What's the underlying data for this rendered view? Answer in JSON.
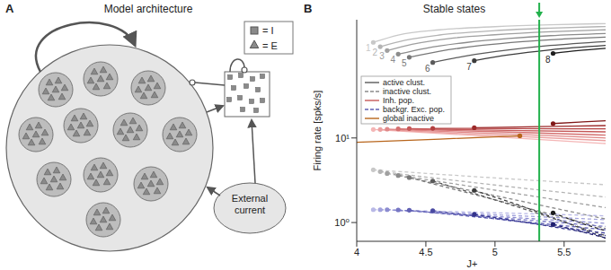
{
  "panel_a": {
    "label": "A",
    "title": "Model architecture",
    "legend": [
      {
        "shape": "square",
        "text": "= I"
      },
      {
        "shape": "triangle",
        "text": "= E"
      }
    ],
    "external": {
      "label_lines": [
        "External",
        "current"
      ]
    },
    "clusters": 11
  },
  "chart_data": {
    "type": "line",
    "panel_label": "B",
    "title": "Stable states",
    "x_label": "J+",
    "y_label": "Firing rate [spks/s]",
    "log": "y",
    "xlim": [
      4,
      5.8
    ],
    "xticks": [
      4,
      4.5,
      5,
      5.5
    ],
    "ylim": [
      0.6,
      250
    ],
    "yticks": [
      {
        "value": 1,
        "label": "10⁰"
      },
      {
        "value": 10,
        "label": "10¹"
      }
    ],
    "legend": "left",
    "reference_line": {
      "x": 5.32,
      "color": "#22b14c"
    },
    "series": [
      {
        "name": "active clust.",
        "color": "#5a5a5a",
        "line_style": "solid",
        "marker": "start",
        "lines": [
          {
            "label": "1",
            "color": "#c8c8c8",
            "x": [
              4.12,
              4.3,
              4.6,
              5.0,
              5.4,
              5.8
            ],
            "values": [
              135,
              165,
              190,
              207,
              218,
              225
            ]
          },
          {
            "label": "2",
            "color": "#b4b4b4",
            "x": [
              4.17,
              4.35,
              4.6,
              5.0,
              5.4,
              5.8
            ],
            "values": [
              120,
              143,
              165,
              186,
              199,
              208
            ]
          },
          {
            "label": "3",
            "color": "#a0a0a0",
            "x": [
              4.22,
              4.4,
              4.7,
              5.0,
              5.4,
              5.8
            ],
            "values": [
              108,
              128,
              152,
              166,
              180,
              190
            ]
          },
          {
            "label": "4",
            "color": "#8c8c8c",
            "x": [
              4.3,
              4.5,
              4.8,
              5.1,
              5.4,
              5.8
            ],
            "values": [
              98,
              115,
              135,
              150,
              162,
              172
            ]
          },
          {
            "label": "5",
            "color": "#787878",
            "x": [
              4.38,
              4.6,
              4.9,
              5.2,
              5.5,
              5.8
            ],
            "values": [
              90,
              106,
              124,
              138,
              148,
              156
            ]
          },
          {
            "label": "6",
            "color": "#5a5a5a",
            "x": [
              4.55,
              4.8,
              5.1,
              5.4,
              5.8
            ],
            "values": [
              78,
              94,
              110,
              124,
              138
            ]
          },
          {
            "label": "7",
            "color": "#3c3c3c",
            "x": [
              4.85,
              5.1,
              5.4,
              5.8
            ],
            "values": [
              82,
              96,
              110,
              124
            ]
          },
          {
            "label": "8",
            "color": "#1e1e1e",
            "x": [
              5.42,
              5.6,
              5.8
            ],
            "values": [
              100,
              108,
              115
            ]
          }
        ]
      },
      {
        "name": "inactive clust.",
        "color": "#8c8c8c",
        "line_style": "dashed",
        "marker": "start",
        "lines": [
          {
            "color": "#c8c8c8",
            "x": [
              4.12,
              4.96,
              5.8
            ],
            "values": [
              4.2,
              3.4,
              2.8
            ]
          },
          {
            "color": "#b4b4b4",
            "x": [
              4.17,
              4.98,
              5.8
            ],
            "values": [
              4.0,
              2.8,
              2.0
            ]
          },
          {
            "color": "#a0a0a0",
            "x": [
              4.22,
              5.01,
              5.8
            ],
            "values": [
              3.8,
              2.4,
              1.5
            ]
          },
          {
            "color": "#8c8c8c",
            "x": [
              4.3,
              5.05,
              5.8
            ],
            "values": [
              3.6,
              2.0,
              1.1
            ]
          },
          {
            "color": "#787878",
            "x": [
              4.38,
              5.09,
              5.8
            ],
            "values": [
              3.4,
              1.7,
              0.85
            ]
          },
          {
            "color": "#5a5a5a",
            "x": [
              4.55,
              5.18,
              5.8
            ],
            "values": [
              3.1,
              1.5,
              0.7
            ]
          },
          {
            "color": "#3c3c3c",
            "x": [
              4.85,
              5.33,
              5.8
            ],
            "values": [
              2.4,
              1.3,
              0.65
            ]
          },
          {
            "color": "#1e1e1e",
            "x": [
              5.42,
              5.61,
              5.8
            ],
            "values": [
              1.3,
              1.0,
              0.8
            ]
          }
        ]
      },
      {
        "name": "Inh. pop.",
        "color": "#c65858",
        "line_style": "solid",
        "marker": "start",
        "lines": [
          {
            "color": "#f4b6b6",
            "x": [
              4.12,
              4.96,
              5.8
            ],
            "values": [
              12.6,
              10.4,
              8.6
            ]
          },
          {
            "color": "#eba0a0",
            "x": [
              4.17,
              4.98,
              5.8
            ],
            "values": [
              12.6,
              10.8,
              9.3
            ]
          },
          {
            "color": "#e08888",
            "x": [
              4.22,
              5.01,
              5.8
            ],
            "values": [
              12.7,
              11.3,
              10.0
            ]
          },
          {
            "color": "#d47070",
            "x": [
              4.3,
              5.05,
              5.8
            ],
            "values": [
              12.8,
              11.8,
              10.8
            ]
          },
          {
            "color": "#c65858",
            "x": [
              4.38,
              5.09,
              5.8
            ],
            "values": [
              12.9,
              12.3,
              11.8
            ]
          },
          {
            "color": "#b34040",
            "x": [
              4.55,
              5.18,
              5.8
            ],
            "values": [
              13.0,
              12.9,
              12.8
            ]
          },
          {
            "color": "#9c2a2a",
            "x": [
              4.85,
              5.33,
              5.8
            ],
            "values": [
              13.2,
              13.6,
              14.0
            ]
          },
          {
            "color": "#801818",
            "x": [
              5.42,
              5.61,
              5.8
            ],
            "values": [
              14.8,
              15.4,
              16.0
            ]
          }
        ]
      },
      {
        "name": "backgr. Exc. pop.",
        "color": "#6060b4",
        "line_style": "dashed",
        "marker": "start",
        "lines": [
          {
            "color": "#b8b8e6",
            "x": [
              4.12,
              4.96,
              5.8
            ],
            "values": [
              1.42,
              1.31,
              1.2
            ]
          },
          {
            "color": "#a2a2dc",
            "x": [
              4.17,
              4.98,
              5.8
            ],
            "values": [
              1.42,
              1.24,
              1.08
            ]
          },
          {
            "color": "#8c8cd0",
            "x": [
              4.22,
              5.01,
              5.8
            ],
            "values": [
              1.42,
              1.18,
              0.98
            ]
          },
          {
            "color": "#7676c4",
            "x": [
              4.3,
              5.05,
              5.8
            ],
            "values": [
              1.41,
              1.13,
              0.9
            ]
          },
          {
            "color": "#6060b4",
            "x": [
              4.38,
              5.09,
              5.8
            ],
            "values": [
              1.4,
              1.07,
              0.82
            ]
          },
          {
            "color": "#4a4aa2",
            "x": [
              4.55,
              5.18,
              5.8
            ],
            "values": [
              1.38,
              1.02,
              0.75
            ]
          },
          {
            "color": "#34348c",
            "x": [
              4.85,
              5.33,
              5.8
            ],
            "values": [
              1.25,
              0.94,
              0.7
            ]
          },
          {
            "color": "#202070",
            "x": [
              5.42,
              5.61,
              5.8
            ],
            "values": [
              0.95,
              0.79,
              0.66
            ]
          }
        ]
      },
      {
        "name": "global inactive",
        "color": "#b8651b",
        "line_style": "solid",
        "marker": "end",
        "lines": [
          {
            "color": "#b8651b",
            "x": [
              4,
              4.6,
              5.18
            ],
            "values": [
              8.9,
              9.7,
              10.6
            ]
          }
        ]
      }
    ]
  }
}
